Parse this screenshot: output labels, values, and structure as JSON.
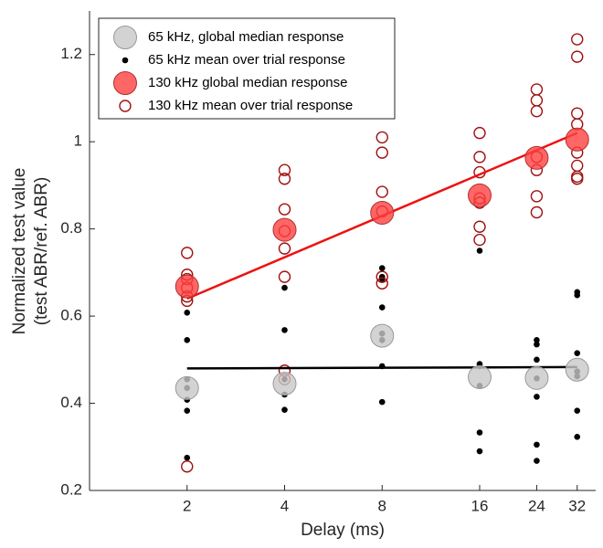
{
  "chart_data": {
    "type": "scatter",
    "xlabel": "Delay (ms)",
    "ylabel": [
      "Normalized test value",
      "(test ABR/ref. ABR)"
    ],
    "log_x": true,
    "xlim": [
      1,
      36.5
    ],
    "xticks": [
      2,
      4,
      8,
      16,
      24,
      32
    ],
    "ylim": [
      0.2,
      1.3
    ],
    "yticks": [
      0.2,
      0.4,
      0.6,
      0.8,
      1,
      1.2
    ],
    "legend": "upper left",
    "series": [
      {
        "name": "65 kHz mean over trial response",
        "marker": "dot",
        "color": "#000000",
        "x": [
          2,
          2,
          2,
          2,
          2,
          2,
          2,
          4,
          4,
          4,
          4,
          4,
          8,
          8,
          8,
          8,
          8,
          8,
          8,
          8,
          16,
          16,
          16,
          16,
          16,
          16,
          24,
          24,
          24,
          24,
          24,
          24,
          24,
          32,
          32,
          32,
          32,
          32,
          32,
          32
        ],
        "values": [
          0.608,
          0.545,
          0.455,
          0.435,
          0.408,
          0.383,
          0.275,
          0.665,
          0.568,
          0.455,
          0.42,
          0.385,
          0.71,
          0.69,
          0.685,
          0.62,
          0.56,
          0.545,
          0.485,
          0.403,
          0.75,
          0.49,
          0.485,
          0.44,
          0.333,
          0.29,
          0.545,
          0.535,
          0.5,
          0.457,
          0.415,
          0.305,
          0.268,
          0.655,
          0.648,
          0.515,
          0.473,
          0.462,
          0.383,
          0.323
        ]
      },
      {
        "name": "130 kHz mean over trial response",
        "marker": "ring",
        "color": "#a01010",
        "x": [
          2,
          2,
          2,
          2,
          2,
          2,
          2,
          4,
          4,
          4,
          4,
          4,
          4,
          4,
          4,
          8,
          8,
          8,
          8,
          8,
          8,
          16,
          16,
          16,
          16,
          16,
          16,
          16,
          24,
          24,
          24,
          24,
          24,
          24,
          24,
          32,
          32,
          32,
          32,
          32,
          32,
          32,
          32
        ],
        "values": [
          0.745,
          0.695,
          0.685,
          0.665,
          0.645,
          0.635,
          0.255,
          0.935,
          0.915,
          0.845,
          0.795,
          0.755,
          0.69,
          0.475,
          0.455,
          1.01,
          0.975,
          0.885,
          0.84,
          0.69,
          0.675,
          1.02,
          0.965,
          0.93,
          0.87,
          0.86,
          0.805,
          0.775,
          1.12,
          1.095,
          1.07,
          0.965,
          0.935,
          0.875,
          0.838,
          1.235,
          1.195,
          1.065,
          1.04,
          0.975,
          0.945,
          0.92,
          0.915
        ]
      },
      {
        "marker": "fit",
        "color": "#000000",
        "x": [
          2,
          32
        ],
        "values": [
          0.48,
          0.483
        ]
      },
      {
        "marker": "fit",
        "color": "#ee1111",
        "x": [
          2,
          32
        ],
        "values": [
          0.64,
          1.02
        ]
      },
      {
        "name": "65 kHz, global median response",
        "marker": "big",
        "color": "#c8c8c8",
        "x": [
          2,
          4,
          8,
          16,
          24,
          32
        ],
        "values": [
          0.435,
          0.445,
          0.555,
          0.46,
          0.458,
          0.477
        ]
      },
      {
        "name": "130 kHz global median response",
        "marker": "big",
        "color": "#ff4040",
        "x": [
          2,
          4,
          8,
          16,
          24,
          32
        ],
        "values": [
          0.668,
          0.798,
          0.837,
          0.877,
          0.963,
          1.005
        ]
      }
    ],
    "legend_order": [
      4,
      0,
      5,
      1
    ]
  }
}
